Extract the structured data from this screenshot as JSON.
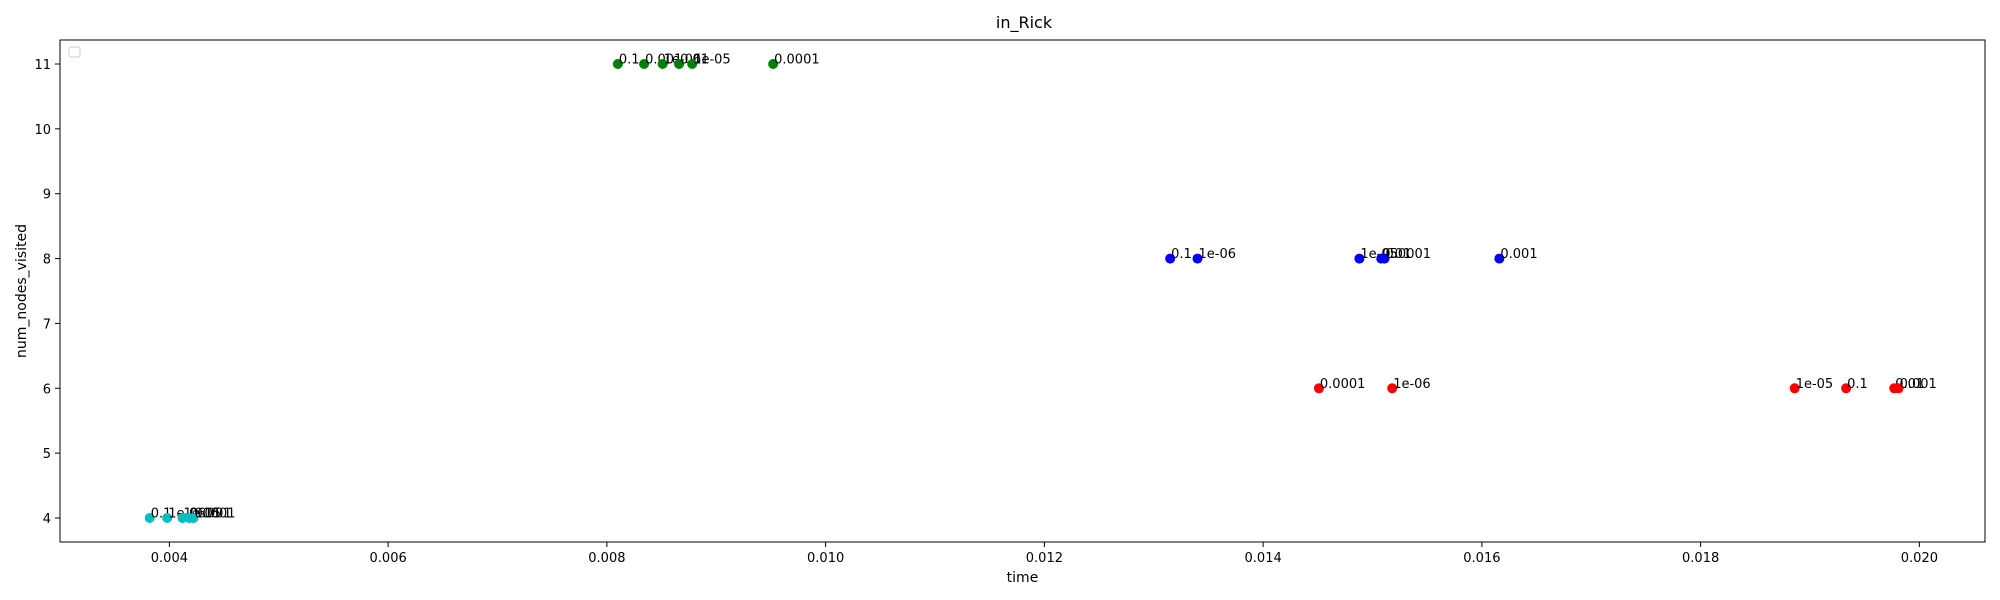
{
  "chart_data": {
    "type": "scatter",
    "title": "in_Rick",
    "xlabel": "time",
    "ylabel": "num_nodes_visited",
    "xlim": [
      0.003,
      0.0206
    ],
    "ylim": [
      3.63,
      11.37
    ],
    "xticks": [
      "0.004",
      "0.006",
      "0.008",
      "0.010",
      "0.012",
      "0.014",
      "0.016",
      "0.018",
      "0.020"
    ],
    "yticks": [
      "4",
      "5",
      "6",
      "7",
      "8",
      "9",
      "10",
      "11"
    ],
    "grid": false,
    "legend": "top-left, empty",
    "series": [
      {
        "color": "#00bfbf",
        "points": [
          {
            "x": 0.00382,
            "y": 4,
            "label": "0.1"
          },
          {
            "x": 0.00398,
            "y": 4,
            "label": "1e-06"
          },
          {
            "x": 0.00412,
            "y": 4,
            "label": "1e-05"
          },
          {
            "x": 0.00418,
            "y": 4,
            "label": "0.0001"
          },
          {
            "x": 0.00422,
            "y": 4,
            "label": "0.001"
          }
        ]
      },
      {
        "color": "#008000",
        "points": [
          {
            "x": 0.0081,
            "y": 11,
            "label": "0.1"
          },
          {
            "x": 0.00834,
            "y": 11,
            "label": "0.001"
          },
          {
            "x": 0.00851,
            "y": 11,
            "label": "1e-06"
          },
          {
            "x": 0.00866,
            "y": 11,
            "label": "0.01"
          },
          {
            "x": 0.00878,
            "y": 11,
            "label": "1e-05"
          },
          {
            "x": 0.00952,
            "y": 11,
            "label": "0.0001"
          }
        ]
      },
      {
        "color": "#0000ff",
        "points": [
          {
            "x": 0.01315,
            "y": 8,
            "label": "0.1"
          },
          {
            "x": 0.0134,
            "y": 8,
            "label": "1e-06"
          },
          {
            "x": 0.01488,
            "y": 8,
            "label": "1e-05"
          },
          {
            "x": 0.01508,
            "y": 8,
            "label": "0.01"
          },
          {
            "x": 0.01511,
            "y": 8,
            "label": "0.0001"
          },
          {
            "x": 0.01616,
            "y": 8,
            "label": "0.001"
          }
        ]
      },
      {
        "color": "#ff0000",
        "points": [
          {
            "x": 0.01451,
            "y": 6,
            "label": "0.0001"
          },
          {
            "x": 0.01518,
            "y": 6,
            "label": "1e-06"
          },
          {
            "x": 0.01886,
            "y": 6,
            "label": "1e-05"
          },
          {
            "x": 0.01933,
            "y": 6,
            "label": "0.1"
          },
          {
            "x": 0.01977,
            "y": 6,
            "label": "0.01"
          },
          {
            "x": 0.01981,
            "y": 6,
            "label": "0.001"
          }
        ]
      }
    ]
  }
}
